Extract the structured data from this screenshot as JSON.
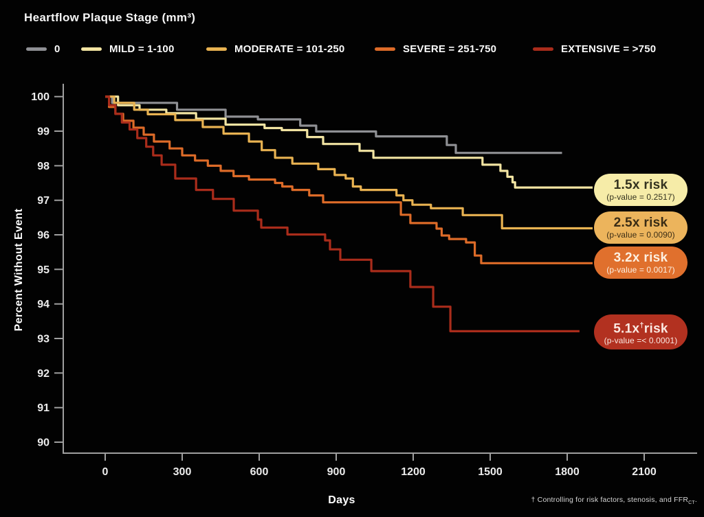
{
  "chart_data": {
    "type": "step-line",
    "title": "Heartflow Plaque Stage (mm³)",
    "xlabel": "Days",
    "ylabel": "Percent Without Event",
    "xlim": [
      0,
      2300
    ],
    "ylim": [
      90,
      100
    ],
    "x_ticks": [
      0,
      300,
      600,
      900,
      1200,
      1500,
      1800,
      2100
    ],
    "y_ticks": [
      100,
      99,
      98,
      97,
      96,
      95,
      94,
      93,
      92,
      91,
      90
    ],
    "grid": false,
    "legend_position": "top",
    "series": [
      {
        "name": "0",
        "legend_label": "0",
        "color": "#8f9094",
        "end_day": 1780,
        "points": [
          [
            0,
            100
          ],
          [
            27,
            99.82
          ],
          [
            280,
            99.62
          ],
          [
            469,
            99.42
          ],
          [
            595,
            99.34
          ],
          [
            760,
            99.16
          ],
          [
            822,
            98.99
          ],
          [
            1055,
            98.85
          ],
          [
            1331,
            98.6
          ],
          [
            1366,
            98.37
          ]
        ]
      },
      {
        "name": "MILD",
        "legend_label": "MILD = 1-100",
        "color": "#f2e4a2",
        "end_day": 1899,
        "points": [
          [
            0,
            100
          ],
          [
            50,
            99.75
          ],
          [
            134,
            99.62
          ],
          [
            238,
            99.52
          ],
          [
            354,
            99.36
          ],
          [
            469,
            99.19
          ],
          [
            621,
            99.09
          ],
          [
            688,
            99.03
          ],
          [
            787,
            98.83
          ],
          [
            849,
            98.63
          ],
          [
            991,
            98.43
          ],
          [
            1045,
            98.23
          ],
          [
            1470,
            98.03
          ],
          [
            1540,
            97.85
          ],
          [
            1567,
            97.68
          ],
          [
            1587,
            97.52
          ],
          [
            1597,
            97.37
          ]
        ]
      },
      {
        "name": "MODERATE",
        "legend_label": "MODERATE = 101-250",
        "color": "#e8b251",
        "end_day": 1899,
        "points": [
          [
            0,
            100
          ],
          [
            35,
            99.82
          ],
          [
            113,
            99.62
          ],
          [
            166,
            99.49
          ],
          [
            273,
            99.32
          ],
          [
            380,
            99.12
          ],
          [
            461,
            98.93
          ],
          [
            560,
            98.7
          ],
          [
            610,
            98.45
          ],
          [
            662,
            98.23
          ],
          [
            729,
            98.06
          ],
          [
            830,
            97.9
          ],
          [
            894,
            97.73
          ],
          [
            937,
            97.63
          ],
          [
            965,
            97.4
          ],
          [
            996,
            97.3
          ],
          [
            1135,
            97.14
          ],
          [
            1162,
            97.0
          ],
          [
            1197,
            96.87
          ],
          [
            1269,
            96.77
          ],
          [
            1393,
            96.57
          ],
          [
            1546,
            96.19
          ]
        ]
      },
      {
        "name": "SEVERE",
        "legend_label": "SEVERE = 251-750",
        "color": "#dd6b28",
        "end_day": 1899,
        "points": [
          [
            0,
            100
          ],
          [
            15,
            99.7
          ],
          [
            40,
            99.5
          ],
          [
            70,
            99.3
          ],
          [
            110,
            99.1
          ],
          [
            150,
            98.9
          ],
          [
            190,
            98.7
          ],
          [
            251,
            98.5
          ],
          [
            300,
            98.3
          ],
          [
            350,
            98.15
          ],
          [
            400,
            98.0
          ],
          [
            450,
            97.85
          ],
          [
            500,
            97.7
          ],
          [
            560,
            97.6
          ],
          [
            662,
            97.5
          ],
          [
            690,
            97.4
          ],
          [
            729,
            97.3
          ],
          [
            795,
            97.14
          ],
          [
            849,
            96.94
          ],
          [
            1152,
            96.58
          ],
          [
            1189,
            96.34
          ],
          [
            1291,
            96.18
          ],
          [
            1311,
            95.98
          ],
          [
            1340,
            95.88
          ],
          [
            1406,
            95.78
          ],
          [
            1440,
            95.4
          ],
          [
            1465,
            95.18
          ]
        ]
      },
      {
        "name": "EXTENSIVE",
        "legend_label": "EXTENSIVE = >750",
        "color": "#a92c1b",
        "end_day": 1848,
        "points": [
          [
            0,
            100
          ],
          [
            15,
            99.75
          ],
          [
            40,
            99.5
          ],
          [
            65,
            99.25
          ],
          [
            95,
            99.05
          ],
          [
            125,
            98.8
          ],
          [
            160,
            98.55
          ],
          [
            187,
            98.3
          ],
          [
            220,
            98.03
          ],
          [
            273,
            97.63
          ],
          [
            354,
            97.3
          ],
          [
            420,
            97.04
          ],
          [
            501,
            96.7
          ],
          [
            595,
            96.44
          ],
          [
            608,
            96.21
          ],
          [
            710,
            96.01
          ],
          [
            857,
            95.84
          ],
          [
            876,
            95.58
          ],
          [
            916,
            95.28
          ],
          [
            1037,
            94.95
          ],
          [
            1189,
            94.49
          ],
          [
            1278,
            93.92
          ],
          [
            1345,
            93.21
          ]
        ]
      }
    ]
  },
  "risk_badges": [
    {
      "multiplier_pre": "1.5x",
      "sup": "",
      "multiplier_post": " risk",
      "pvalue": "(p-value = 0.2517)",
      "bg": "#f6eca8",
      "fg": "#33321f"
    },
    {
      "multiplier_pre": "2.5x",
      "sup": "",
      "multiplier_post": " risk",
      "pvalue": "(p-value = 0.0090)",
      "bg": "#ecb45c",
      "fg": "#3a2c15"
    },
    {
      "multiplier_pre": "3.2x",
      "sup": "",
      "multiplier_post": " risk",
      "pvalue": "(p-value = 0.0017)",
      "bg": "#e0702d",
      "fg": "#fdf0e1"
    },
    {
      "multiplier_pre": "5.1x",
      "sup": "†",
      "multiplier_post": "risk",
      "pvalue": "(p-value =< 0.0001)",
      "bg": "#b23120",
      "fg": "#fbe9e2"
    }
  ],
  "footnote": {
    "text": "† Controlling for risk factors, stenosis, and FFR",
    "subscript": "CT",
    "suffix": "."
  },
  "axis_style": {
    "axis_color": "#a0a0a0",
    "tick_label_color": "#ececec",
    "background": "#020202"
  }
}
